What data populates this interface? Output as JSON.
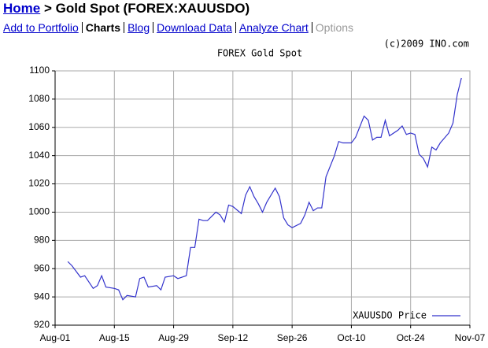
{
  "header": {
    "home": "Home",
    "title": "> Gold Spot (FOREX:XAUUSDO)"
  },
  "nav": [
    {
      "label": "Add to Portfolio",
      "style": "link"
    },
    {
      "label": "Charts",
      "style": "current"
    },
    {
      "label": "Blog",
      "style": "link"
    },
    {
      "label": "Download Data",
      "style": "link"
    },
    {
      "label": "Analyze Chart",
      "style": "link"
    },
    {
      "label": "Options",
      "style": "disabled"
    }
  ],
  "copyright": "(c)2009 INO.com",
  "chart_data": {
    "type": "line",
    "title": "FOREX Gold Spot",
    "x": [
      3,
      4,
      6,
      7,
      9,
      10,
      11,
      12,
      14,
      15,
      16,
      17,
      19,
      20,
      21,
      22,
      24,
      25,
      26,
      28,
      29,
      31,
      32,
      33,
      34,
      35,
      36,
      38,
      39,
      40,
      41,
      42,
      44,
      45,
      46,
      47,
      48,
      49,
      50,
      52,
      53,
      54,
      55,
      56,
      58,
      59,
      60,
      61,
      62,
      63,
      64,
      66,
      67,
      68,
      69,
      70,
      71,
      73,
      74,
      75,
      76,
      77,
      78,
      79,
      81,
      82,
      83,
      84,
      85,
      86,
      87,
      88,
      89,
      90,
      91,
      93,
      94,
      95,
      96
    ],
    "series": [
      {
        "name": "XAUUSDO Price",
        "color": "#3333cc",
        "values": [
          965,
          962,
          954,
          955,
          946,
          948,
          955,
          947,
          946,
          945,
          938,
          941,
          940,
          953,
          954,
          947,
          948,
          945,
          954,
          955,
          953,
          955,
          975,
          975,
          995,
          994,
          994,
          1000,
          998,
          993,
          1005,
          1004,
          999,
          1012,
          1018,
          1011,
          1006,
          1000,
          1007,
          1017,
          1011,
          996,
          991,
          989,
          992,
          998,
          1007,
          1001,
          1003,
          1003,
          1025,
          1040,
          1050,
          1049,
          1049,
          1049,
          1053,
          1068,
          1065,
          1051,
          1053,
          1053,
          1065,
          1054,
          1058,
          1061,
          1055,
          1056,
          1055,
          1041,
          1038,
          1032,
          1046,
          1044,
          1049,
          1056,
          1063,
          1083,
          1095
        ]
      }
    ],
    "xlim": [
      0,
      98
    ],
    "xticks": [
      {
        "value": 0,
        "label": "Aug-01"
      },
      {
        "value": 14,
        "label": "Aug-15"
      },
      {
        "value": 28,
        "label": "Aug-29"
      },
      {
        "value": 42,
        "label": "Sep-12"
      },
      {
        "value": 56,
        "label": "Sep-26"
      },
      {
        "value": 70,
        "label": "Oct-10"
      },
      {
        "value": 84,
        "label": "Oct-24"
      },
      {
        "value": 98,
        "label": "Nov-07"
      }
    ],
    "ylim": [
      920,
      1100
    ],
    "yticks": [
      920,
      940,
      960,
      980,
      1000,
      1020,
      1040,
      1060,
      1080,
      1100
    ],
    "grid": true,
    "legend": "lower-right"
  }
}
